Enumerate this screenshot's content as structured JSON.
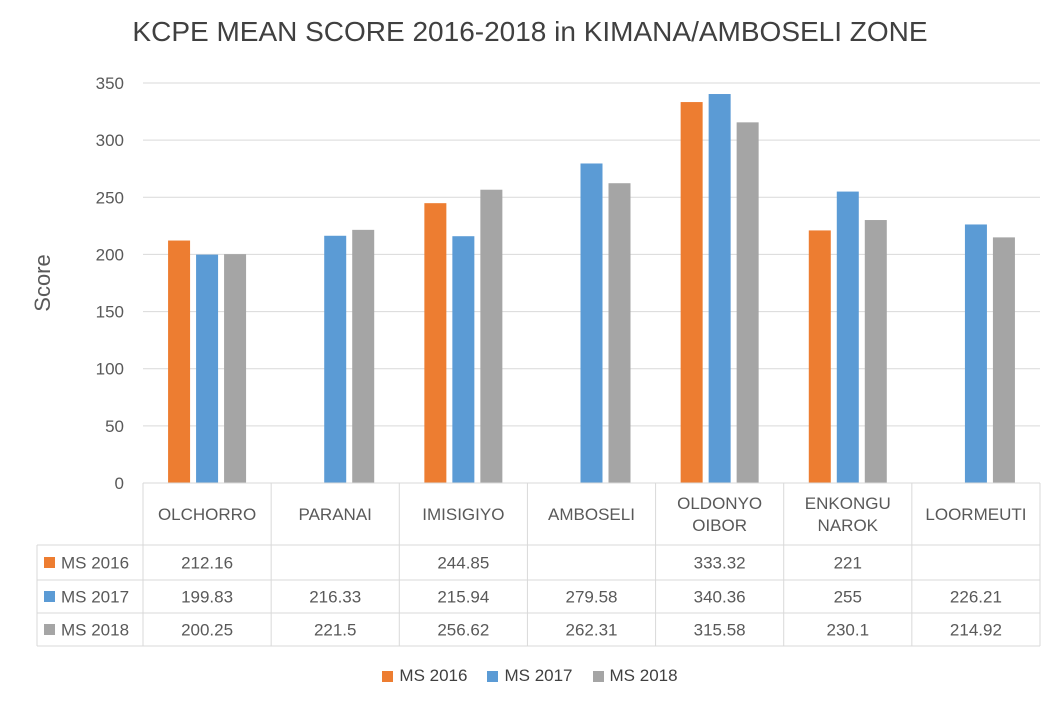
{
  "chart_data": {
    "type": "bar",
    "title": "KCPE MEAN SCORE 2016-2018 in KIMANA/AMBOSELI ZONE",
    "ylabel": "Score",
    "xlabel": "",
    "ylim": [
      0,
      350
    ],
    "yticks": [
      0,
      50,
      100,
      150,
      200,
      250,
      300,
      350
    ],
    "grid": true,
    "legend_position": "bottom",
    "categories": [
      [
        "OLCHORRO"
      ],
      [
        "PARANAI"
      ],
      [
        "IMISIGIYO"
      ],
      [
        "AMBOSELI"
      ],
      [
        "OLDONYO",
        "OIBOR"
      ],
      [
        "ENKONGU",
        "NAROK"
      ],
      [
        "LOORMEUTI"
      ]
    ],
    "series": [
      {
        "name": "MS 2016",
        "color": "#ED7D31",
        "values": [
          212.16,
          null,
          244.85,
          null,
          333.32,
          221,
          null
        ]
      },
      {
        "name": "MS 2017",
        "color": "#5B9BD5",
        "values": [
          199.83,
          216.33,
          215.94,
          279.58,
          340.36,
          255,
          226.21
        ]
      },
      {
        "name": "MS 2018",
        "color": "#A5A5A5",
        "values": [
          200.25,
          221.5,
          256.62,
          262.31,
          315.58,
          230.1,
          214.92
        ]
      }
    ]
  }
}
